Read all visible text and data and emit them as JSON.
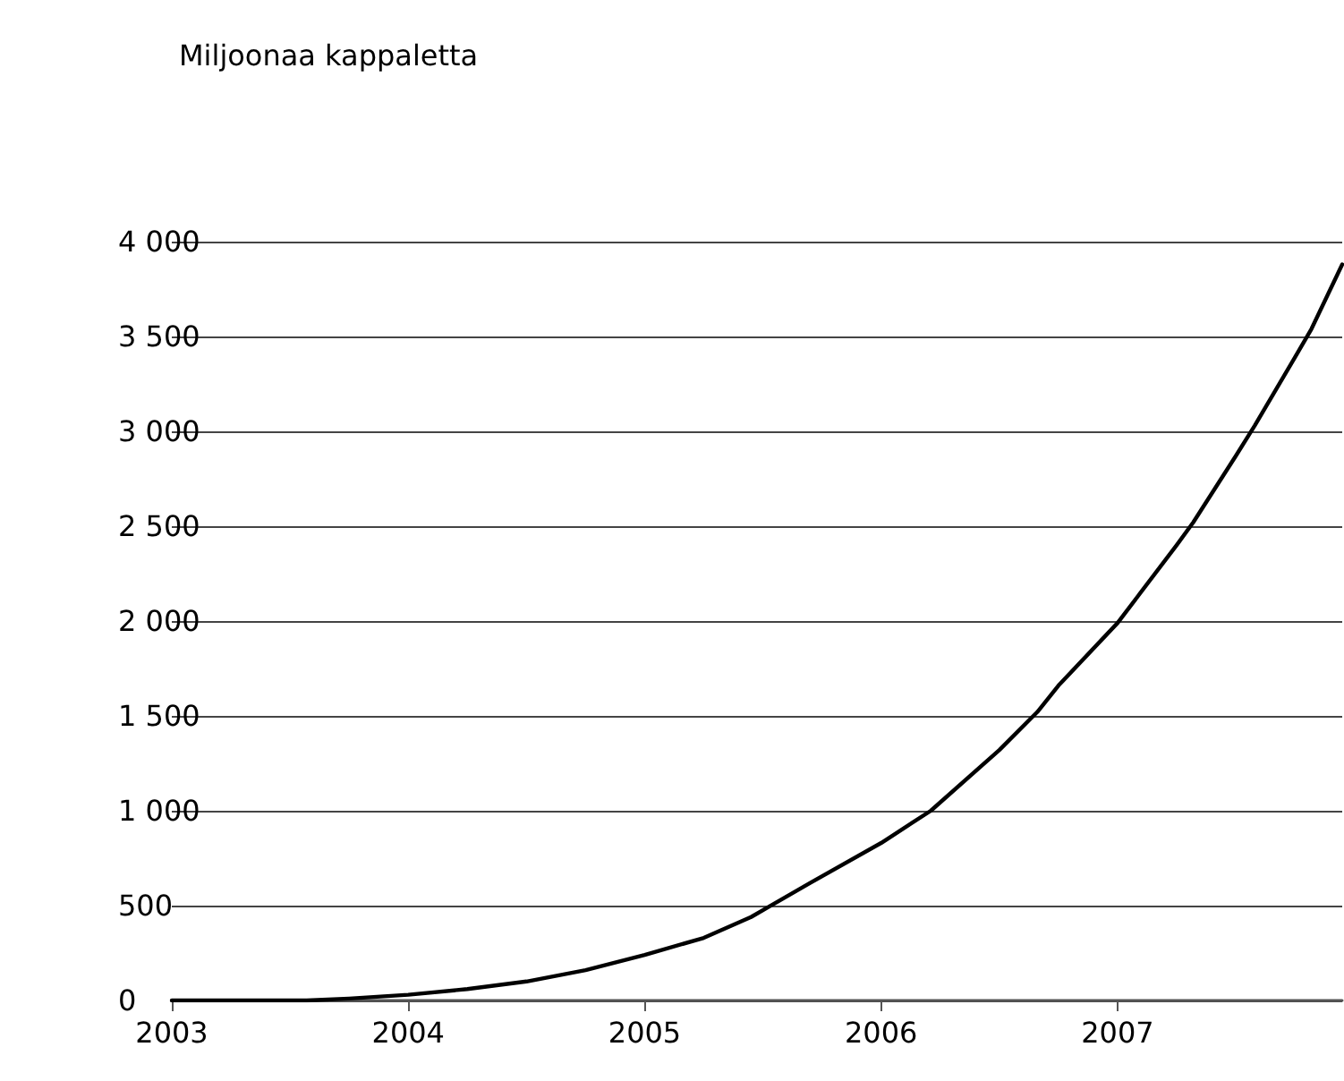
{
  "chart_data": {
    "type": "line",
    "annotations": [
      "Miljoonaa kappaletta"
    ],
    "x": [
      2003,
      2003.25,
      2003.57,
      2003.75,
      2004,
      2004.25,
      2004.5,
      2004.75,
      2005,
      2005.25,
      2005.45,
      2005.7,
      2006,
      2006.21,
      2006.5,
      2006.66,
      2006.75,
      2007,
      2007.25,
      2007.32,
      2007.5,
      2007.58,
      2007.75,
      2007.82,
      2007.95
    ],
    "series": [
      {
        "color": "#000000",
        "values": [
          0,
          0,
          0,
          10,
          30,
          60,
          100,
          160,
          240,
          330,
          440,
          620,
          830,
          1000,
          1320,
          1520,
          1660,
          1990,
          2400,
          2520,
          2870,
          3030,
          3390,
          3540,
          3880
        ]
      }
    ],
    "xlim": [
      2003,
      2007.95
    ],
    "xticks": [
      2003,
      2004,
      2005,
      2006,
      2007
    ],
    "ylim": [
      0,
      4000
    ],
    "yticks": [
      0,
      500,
      {
        "value": 1000,
        "label": "1 000"
      },
      {
        "value": 1500,
        "label": "1 500"
      },
      {
        "value": 2000,
        "label": "2 000"
      },
      {
        "value": 2500,
        "label": "2 500"
      },
      {
        "value": 3000,
        "label": "3 000"
      },
      {
        "value": 3500,
        "label": "3 500"
      },
      {
        "value": 4000,
        "label": "4 000"
      }
    ],
    "grid": "y",
    "marker": "none",
    "line_style": "solid"
  }
}
